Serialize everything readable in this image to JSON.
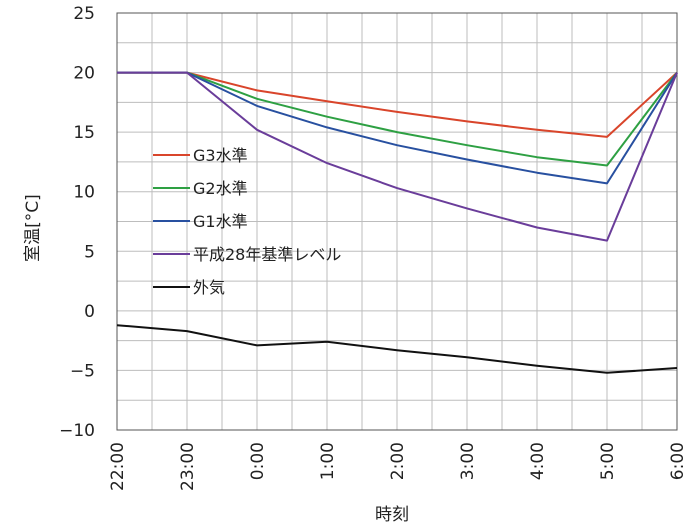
{
  "chart_data": {
    "type": "line",
    "xlabel": "時刻",
    "ylabel": "室温[°C]",
    "categories": [
      "22:00",
      "23:00",
      "0:00",
      "1:00",
      "2:00",
      "3:00",
      "4:00",
      "5:00",
      "6:00"
    ],
    "ylim": [
      -10,
      25
    ],
    "yticks": [
      "25",
      "20",
      "15",
      "10",
      "5",
      "0",
      "−5",
      "−10"
    ],
    "ytick_values": [
      25,
      20,
      15,
      10,
      5,
      0,
      -5,
      -10
    ],
    "grid": true,
    "legend_position": "left",
    "series": [
      {
        "name": "G3水準",
        "color": "#d9452b",
        "values": [
          20,
          20,
          18.5,
          17.6,
          16.7,
          15.9,
          15.2,
          14.6,
          20
        ]
      },
      {
        "name": "G2水準",
        "color": "#2ea043",
        "values": [
          20,
          20,
          17.8,
          16.3,
          15.0,
          13.9,
          12.9,
          12.2,
          20
        ]
      },
      {
        "name": "G1水準",
        "color": "#2850a0",
        "values": [
          20,
          20,
          17.2,
          15.4,
          13.9,
          12.7,
          11.6,
          10.7,
          20
        ]
      },
      {
        "name": "平成28年基準レベル",
        "color": "#6a3d9a",
        "values": [
          20,
          20,
          15.2,
          12.4,
          10.3,
          8.6,
          7.0,
          5.9,
          20
        ]
      },
      {
        "name": "外気",
        "color": "#111111",
        "values": [
          -1.2,
          -1.7,
          -2.9,
          -2.6,
          -3.3,
          -3.9,
          -4.6,
          -5.2,
          -4.8
        ]
      }
    ]
  }
}
